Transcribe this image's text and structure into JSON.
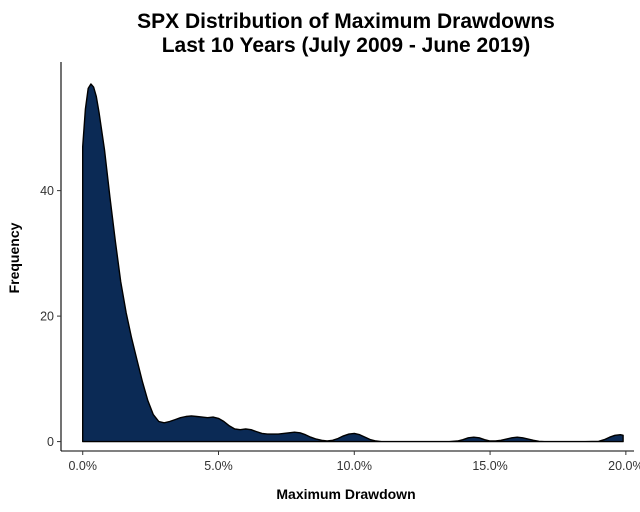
{
  "chart_data": {
    "type": "area",
    "title": [
      "SPX Distribution of Maximum Drawdowns",
      "Last 10 Years (July 2009 - June 2019)"
    ],
    "xlabel": "Maximum Drawdown",
    "ylabel": "Frequency",
    "xlim": [
      -0.008,
      0.203
    ],
    "ylim": [
      -1.5,
      60.5
    ],
    "x_ticks": [
      0,
      0.05,
      0.1,
      0.15,
      0.2
    ],
    "x_tick_labels": [
      "0.0%",
      "5.0%",
      "10.0%",
      "15.0%",
      "20.0%"
    ],
    "y_ticks": [
      0,
      20,
      40
    ],
    "y_tick_labels": [
      "0",
      "20",
      "40"
    ],
    "grid": false,
    "legend": "none",
    "fill_color": "#0b2a55",
    "line_color": "#000000",
    "series": [
      {
        "x": [
          0,
          0.001,
          0.002,
          0.003,
          0.004,
          0.005,
          0.006,
          0.008,
          0.01,
          0.012,
          0.014,
          0.016,
          0.018,
          0.02,
          0.022,
          0.024,
          0.026,
          0.028,
          0.03,
          0.032,
          0.034,
          0.036,
          0.038,
          0.04,
          0.042,
          0.044,
          0.046,
          0.048,
          0.05,
          0.052,
          0.054,
          0.056,
          0.058,
          0.06,
          0.062,
          0.064,
          0.066,
          0.068,
          0.07,
          0.072,
          0.074,
          0.076,
          0.078,
          0.08,
          0.082,
          0.084,
          0.086,
          0.088,
          0.09,
          0.092,
          0.094,
          0.096,
          0.098,
          0.1,
          0.102,
          0.104,
          0.106,
          0.108,
          0.11,
          0.115,
          0.12,
          0.125,
          0.13,
          0.135,
          0.138,
          0.14,
          0.142,
          0.144,
          0.146,
          0.148,
          0.15,
          0.152,
          0.154,
          0.156,
          0.158,
          0.16,
          0.162,
          0.164,
          0.166,
          0.168,
          0.17,
          0.175,
          0.18,
          0.185,
          0.19,
          0.192,
          0.194,
          0.196,
          0.198,
          0.199
        ],
        "y": [
          47,
          53,
          56.3,
          57,
          56.5,
          55,
          52.5,
          46.5,
          39,
          32,
          25.5,
          20.5,
          16.5,
          13,
          9.5,
          6.5,
          4.3,
          3.2,
          3.0,
          3.2,
          3.5,
          3.8,
          4.0,
          4.1,
          4.0,
          3.9,
          3.8,
          3.9,
          3.7,
          3.2,
          2.5,
          2.0,
          1.9,
          2.0,
          1.9,
          1.6,
          1.3,
          1.2,
          1.2,
          1.2,
          1.3,
          1.4,
          1.5,
          1.4,
          1.1,
          0.7,
          0.4,
          0.2,
          0.1,
          0.2,
          0.5,
          0.9,
          1.2,
          1.3,
          1.1,
          0.7,
          0.3,
          0.1,
          0,
          0,
          0,
          0,
          0,
          0,
          0.1,
          0.3,
          0.6,
          0.7,
          0.6,
          0.3,
          0.1,
          0.1,
          0.2,
          0.4,
          0.6,
          0.7,
          0.6,
          0.4,
          0.2,
          0.05,
          0,
          0,
          0,
          0,
          0.05,
          0.3,
          0.7,
          1.0,
          1.1,
          1.0
        ]
      }
    ]
  }
}
